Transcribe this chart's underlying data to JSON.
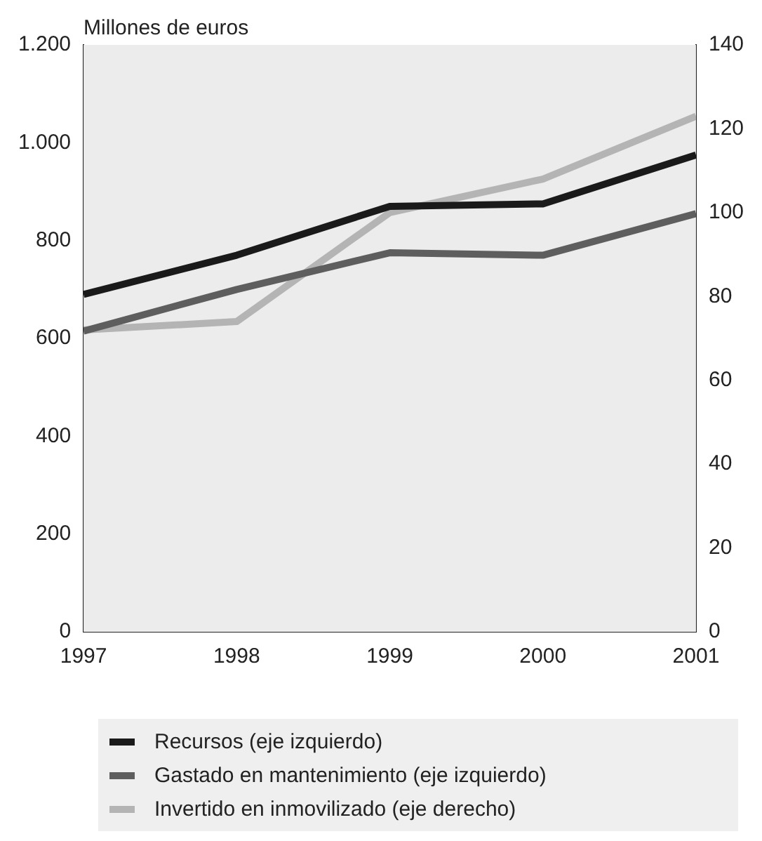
{
  "chart_data": {
    "type": "line",
    "ylabel": "Millones de euros",
    "x": [
      1997,
      1998,
      1999,
      2000,
      2001
    ],
    "xlim": [
      1997,
      2001
    ],
    "xticks": [
      1997,
      1998,
      1999,
      2000,
      2001
    ],
    "ylim": [
      0,
      1200
    ],
    "yticks": [
      0,
      200,
      400,
      600,
      800,
      {
        "value": 1000,
        "label": "1.000"
      },
      {
        "value": 1200,
        "label": "1.200"
      }
    ],
    "y2lim": [
      0,
      140
    ],
    "y2ticks": [
      0,
      20,
      40,
      60,
      80,
      100,
      120,
      140
    ],
    "series": [
      {
        "name": "Recursos (eje izquierdo)",
        "color": "#1a1a1a",
        "values": [
          690,
          770,
          870,
          875,
          975
        ]
      },
      {
        "name": "Gastado en mantenimiento (eje izquierdo)",
        "color": "#5e5e5e",
        "values": [
          615,
          700,
          775,
          770,
          855
        ]
      },
      {
        "name": "Invertido en inmovilizado (eje derecho)",
        "color": "#b4b4b4",
        "values": [
          72,
          74,
          100,
          108,
          123
        ],
        "axis": "y2"
      }
    ],
    "grid": false,
    "legend": "bottom",
    "marker": "none",
    "line_style": "solid"
  }
}
